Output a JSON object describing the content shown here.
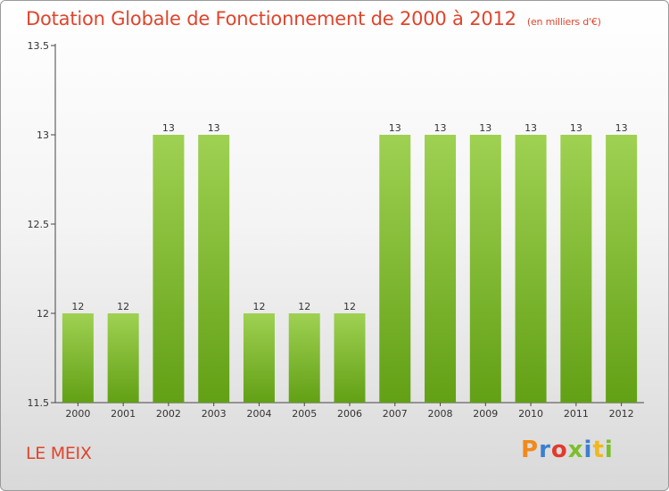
{
  "header": {
    "title": "Dotation Globale de Fonctionnement de 2000 à 2012",
    "unit": "(en milliers d'€)"
  },
  "footer": {
    "commune": "LE MEIX",
    "logo_text": "Proxiti",
    "logo_colors": [
      "#f08a1c",
      "#3b7fd0",
      "#e23a2c",
      "#7bbf2a",
      "#3b7fd0",
      "#f0b81c",
      "#7bbf2a"
    ]
  },
  "colors": {
    "bar_top": "#9fd152",
    "bar_bottom": "#62a015",
    "text": "#e0442c"
  },
  "chart_data": {
    "type": "bar",
    "categories": [
      "2000",
      "2001",
      "2002",
      "2003",
      "2004",
      "2005",
      "2006",
      "2007",
      "2008",
      "2009",
      "2010",
      "2011",
      "2012"
    ],
    "values": [
      12,
      12,
      13,
      13,
      12,
      12,
      12,
      13,
      13,
      13,
      13,
      13,
      13
    ],
    "data_labels": [
      "12",
      "12",
      "13",
      "13",
      "12",
      "12",
      "12",
      "13",
      "13",
      "13",
      "13",
      "13",
      "13"
    ],
    "ylim": [
      11.5,
      13.5
    ],
    "yticks": [
      11.5,
      12,
      12.5,
      13,
      13.5
    ],
    "ytick_labels": [
      "11.5",
      "12",
      "12.5",
      "13",
      "13.5"
    ],
    "grid": false,
    "legend": "none"
  }
}
